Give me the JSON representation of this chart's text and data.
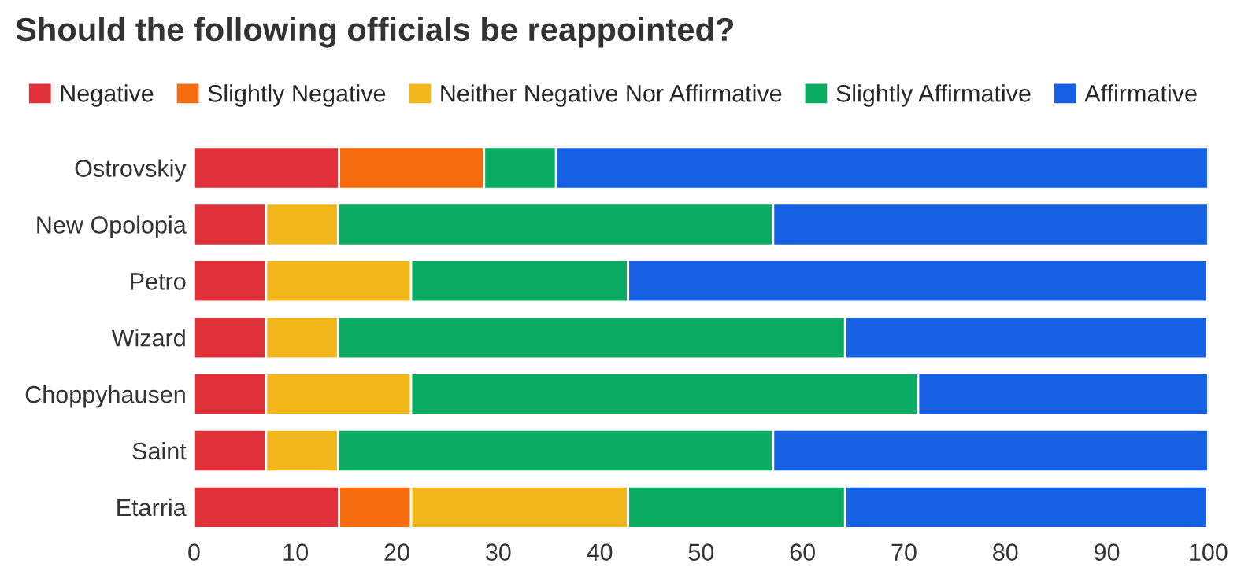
{
  "chart_data": {
    "type": "bar",
    "orientation": "horizontal",
    "stacked": true,
    "title": "Should the following officials be reappointed?",
    "categories": [
      "Ostrovskiy",
      "New Opolopia",
      "Petro",
      "Wizard",
      "Choppyhausen",
      "Saint",
      "Etarria"
    ],
    "series": [
      {
        "name": "Negative",
        "color": "#e0303a",
        "values": [
          14.3,
          7.1,
          7.1,
          7.1,
          7.1,
          7.1,
          14.3
        ]
      },
      {
        "name": "Slightly Negative",
        "color": "#f76b0f",
        "values": [
          14.3,
          0,
          0,
          0,
          0,
          0,
          7.1
        ]
      },
      {
        "name": "Neither Negative Nor Affirmative",
        "color": "#f2b81b",
        "values": [
          0,
          7.1,
          14.3,
          7.1,
          14.3,
          7.1,
          21.4
        ]
      },
      {
        "name": "Slightly Affirmative",
        "color": "#0aac63",
        "values": [
          7.1,
          42.9,
          21.4,
          50.0,
          50.0,
          42.9,
          21.4
        ]
      },
      {
        "name": "Affirmative",
        "color": "#1660e4",
        "values": [
          64.3,
          42.9,
          57.1,
          35.7,
          28.6,
          42.9,
          35.7
        ]
      }
    ],
    "xlim": [
      0,
      100
    ],
    "xticks": [
      0,
      10,
      20,
      30,
      40,
      50,
      60,
      70,
      80,
      90,
      100
    ],
    "grid": false,
    "legend": "top"
  }
}
